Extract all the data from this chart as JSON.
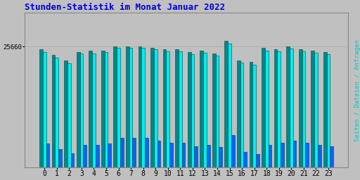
{
  "title": "Stunden-Statistik im Monat Januar 2022",
  "ylabel": "Seiten / Dateien / Anfragen",
  "xlabel_ticks": [
    0,
    1,
    2,
    3,
    4,
    5,
    6,
    7,
    8,
    9,
    10,
    11,
    12,
    13,
    14,
    15,
    16,
    17,
    18,
    19,
    20,
    21,
    22,
    23
  ],
  "background_color": "#c0c0c0",
  "plot_bg_color": "#c0c0c0",
  "title_color": "#0000dd",
  "ylabel_color": "#00cccc",
  "bar_colors": [
    "#008888",
    "#00eeee",
    "#0066ff"
  ],
  "bar_edgecolor": "#004444",
  "ytick_val": 25660,
  "ymin": 24800,
  "ymax": 25900,
  "s1": [
    25640,
    25600,
    25560,
    25620,
    25630,
    25630,
    25660,
    25660,
    25660,
    25650,
    25640,
    25640,
    25620,
    25630,
    25610,
    25700,
    25560,
    25550,
    25650,
    25640,
    25660,
    25640,
    25630,
    25620
  ],
  "s2": [
    25620,
    25580,
    25540,
    25610,
    25610,
    25620,
    25650,
    25650,
    25650,
    25640,
    25625,
    25625,
    25605,
    25615,
    25595,
    25680,
    25545,
    25530,
    25630,
    25625,
    25645,
    25625,
    25615,
    25605
  ],
  "s3": [
    24970,
    24930,
    24900,
    24960,
    24960,
    24970,
    25010,
    25010,
    25010,
    24990,
    24975,
    24975,
    24950,
    24960,
    24945,
    25030,
    24910,
    24895,
    24960,
    24975,
    24990,
    24975,
    24960,
    24950
  ],
  "bar_width": 0.27,
  "figsize": [
    5.12,
    2.56
  ],
  "dpi": 100
}
